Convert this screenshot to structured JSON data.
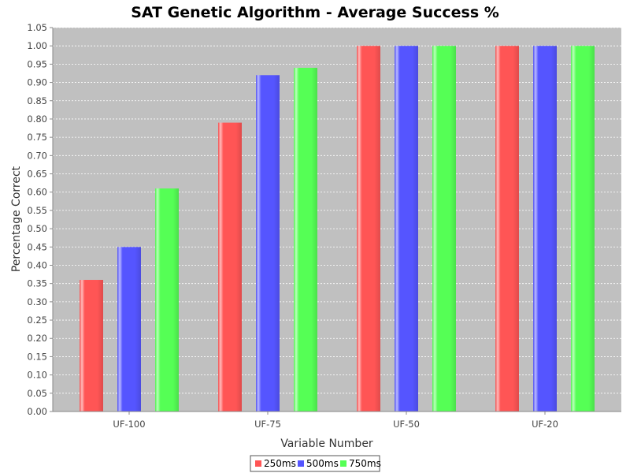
{
  "chart_data": {
    "type": "bar",
    "title": "SAT Genetic Algorithm - Average Success %",
    "xlabel": "Variable Number",
    "ylabel": "Percentage Correct",
    "categories": [
      "UF-100",
      "UF-75",
      "UF-50",
      "UF-20"
    ],
    "series": [
      {
        "name": "250ms",
        "color": "#ff5555",
        "values": [
          0.36,
          0.79,
          1.0,
          1.0
        ]
      },
      {
        "name": "500ms",
        "color": "#5555ff",
        "values": [
          0.45,
          0.92,
          1.0,
          1.0
        ]
      },
      {
        "name": "750ms",
        "color": "#55ff55",
        "values": [
          0.61,
          0.94,
          1.0,
          1.0
        ]
      }
    ],
    "ylim": [
      0,
      1.05
    ],
    "yticks": [
      "0.00",
      "0.05",
      "0.10",
      "0.15",
      "0.20",
      "0.25",
      "0.30",
      "0.35",
      "0.40",
      "0.45",
      "0.50",
      "0.55",
      "0.60",
      "0.65",
      "0.70",
      "0.75",
      "0.80",
      "0.85",
      "0.90",
      "0.95",
      "1.00",
      "1.05"
    ],
    "grid": true,
    "plot_background": "#c0c0c0",
    "legend_position": "bottom"
  }
}
